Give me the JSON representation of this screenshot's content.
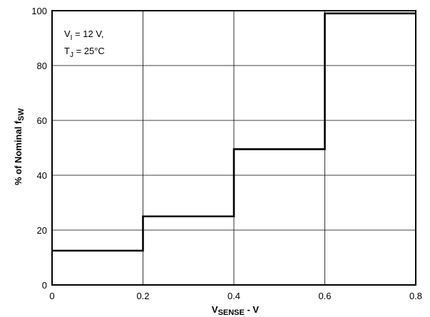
{
  "chart_data": {
    "type": "line",
    "title": "",
    "xlabel": {
      "main": "V",
      "sub": "SENSE",
      "suffix": " - V"
    },
    "ylabel": {
      "main": "% of Nominal f",
      "sub": "SW"
    },
    "xlim": [
      0,
      0.8
    ],
    "ylim": [
      0,
      100
    ],
    "x_ticks": [
      "0",
      "0.2",
      "0.4",
      "0.6",
      "0.8"
    ],
    "y_ticks": [
      "0",
      "20",
      "40",
      "60",
      "80",
      "100"
    ],
    "grid": true,
    "legend": "none",
    "annotation": [
      {
        "main": "V",
        "sub": "I",
        "suffix": " = 12 V,"
      },
      {
        "main": "T",
        "sub": "J",
        "suffix": " = 25°C"
      }
    ],
    "series": [
      {
        "x": [
          0,
          0.2,
          0.2,
          0.4,
          0.4,
          0.6,
          0.6,
          0.8
        ],
        "y": [
          12.5,
          12.5,
          25,
          25,
          49.5,
          49.5,
          99,
          99
        ]
      }
    ],
    "line_color": "#000000"
  }
}
